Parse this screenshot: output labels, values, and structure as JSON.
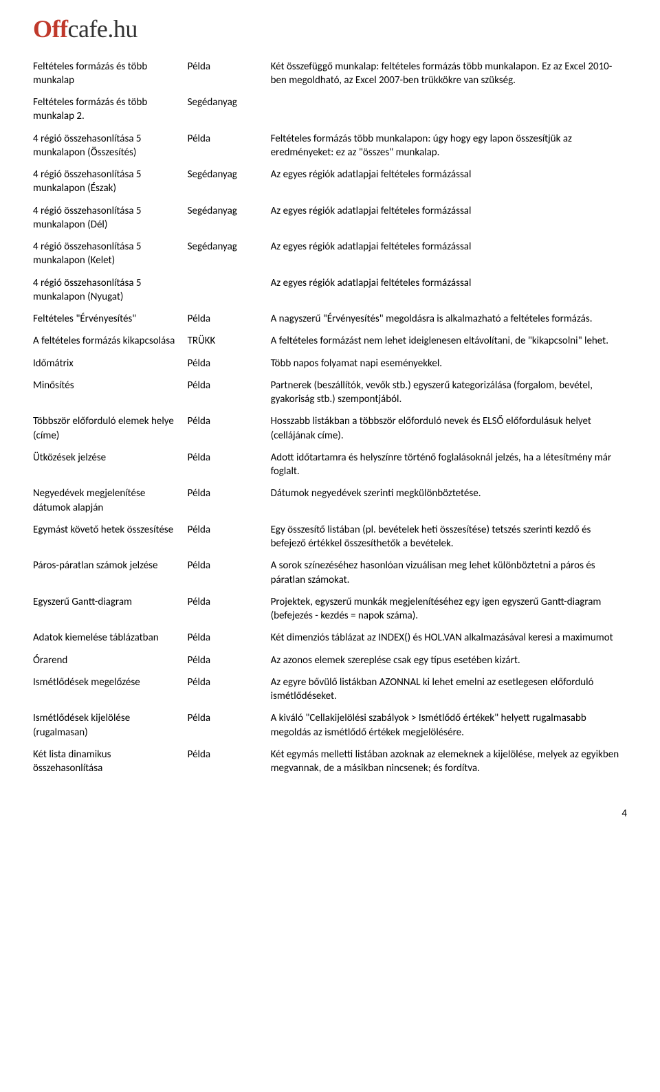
{
  "logo": {
    "off": "Off",
    "cafe": "cafe",
    "hu": ".hu"
  },
  "page_number": "4",
  "rows": [
    {
      "name": "Feltételes formázás és több munkalap",
      "type": "Példa",
      "desc": "Két összefüggő munkalap: feltételes formázás több munkalapon. Ez az Excel 2010-ben megoldható, az Excel 2007-ben trükkökre van szükség."
    },
    {
      "name": "Feltételes formázás és több munkalap 2.",
      "type": "Segédanyag",
      "desc": ""
    },
    {
      "name": "4 régió összehasonlítása 5 munkalapon (Összesítés)",
      "type": "Példa",
      "desc": "Feltételes formázás több munkalapon: úgy hogy egy lapon összesítjük az eredményeket: ez az \"összes\" munkalap."
    },
    {
      "name": "4 régió összehasonlítása 5 munkalapon (Észak)",
      "type": "Segédanyag",
      "desc": "Az egyes régiók adatlapjai feltételes formázással"
    },
    {
      "name": "4 régió összehasonlítása 5 munkalapon (Dél)",
      "type": "Segédanyag",
      "desc": "Az egyes régiók adatlapjai feltételes formázással"
    },
    {
      "name": "4 régió összehasonlítása 5 munkalapon (Kelet)",
      "type": "Segédanyag",
      "desc": "Az egyes régiók adatlapjai feltételes formázással"
    },
    {
      "name": "4 régió összehasonlítása 5 munkalapon (Nyugat)",
      "type": "",
      "desc": "Az egyes régiók adatlapjai feltételes formázással"
    },
    {
      "name": "Feltételes \"Érvényesítés\"",
      "type": "Példa",
      "desc": "A nagyszerű \"Érvényesítés\" megoldásra is alkalmazható a feltételes formázás."
    },
    {
      "name": "A feltételes formázás kikapcsolása",
      "type": "TRÜKK",
      "desc": "A feltételes formázást nem lehet ideiglenesen eltávolítani, de \"kikapcsolni\" lehet."
    },
    {
      "name": "Időmátrix",
      "type": "Példa",
      "desc": "Több napos folyamat napi eseményekkel."
    },
    {
      "name": "Minősítés",
      "type": "Példa",
      "desc": "Partnerek (beszállítók, vevők stb.) egyszerű kategorizálása (forgalom, bevétel, gyakoriság stb.) szempontjából."
    },
    {
      "name": "Többször előforduló elemek helye (címe)",
      "type": "Példa",
      "desc": "Hosszabb listákban a többször előforduló nevek és ELSŐ előfordulásuk helyet (cellájának címe)."
    },
    {
      "name": "Ütközések jelzése",
      "type": "Példa",
      "desc": "Adott időtartamra és helyszínre történő foglalásoknál jelzés, ha a létesítmény már foglalt."
    },
    {
      "name": "Negyedévek megjelenítése dátumok alapján",
      "type": "Példa",
      "desc": "Dátumok negyedévek szerinti megkülönböztetése."
    },
    {
      "name": "Egymást követő hetek összesítése",
      "type": "Példa",
      "desc": "Egy összesítő listában (pl. bevételek heti összesítése) tetszés szerinti kezdő és befejező értékkel összesíthetők a bevételek."
    },
    {
      "name": "Páros-páratlan számok jelzése",
      "type": "Példa",
      "desc": "A sorok színezéséhez hasonlóan vizuálisan meg lehet különböztetni a páros és páratlan számokat."
    },
    {
      "name": "Egyszerű Gantt-diagram",
      "type": "Példa",
      "desc": "Projektek, egyszerű munkák megjelenítéséhez egy igen egyszerű Gantt-diagram (befejezés - kezdés = napok száma)."
    },
    {
      "name": "Adatok kiemelése táblázatban",
      "type": "Példa",
      "desc": "Két dimenziós táblázat az INDEX() és HOL.VAN alkalmazásával keresi a maximumot"
    },
    {
      "name": "Órarend",
      "type": "Példa",
      "desc": "Az azonos elemek szereplése csak egy típus esetében kizárt."
    },
    {
      "name": "Ismétlődések megelőzése",
      "type": "Példa",
      "desc": "Az egyre bővülő listákban AZONNAL ki lehet emelni az esetlegesen előforduló ismétlődéseket."
    },
    {
      "name": "Ismétlődések kijelölése (rugalmasan)",
      "type": "Példa",
      "desc": "A kiváló \"Cellakijelölési szabályok > Ismétlődő értékek\" helyett rugalmasabb megoldás az ismétlődő értékek megjelölésére."
    },
    {
      "name": "Két lista dinamikus összehasonlítása",
      "type": "Példa",
      "desc": "Két egymás melletti listában azoknak az elemeknek a kijelölése, melyek az egyikben megvannak, de a másikban nincsenek; és fordítva."
    }
  ]
}
